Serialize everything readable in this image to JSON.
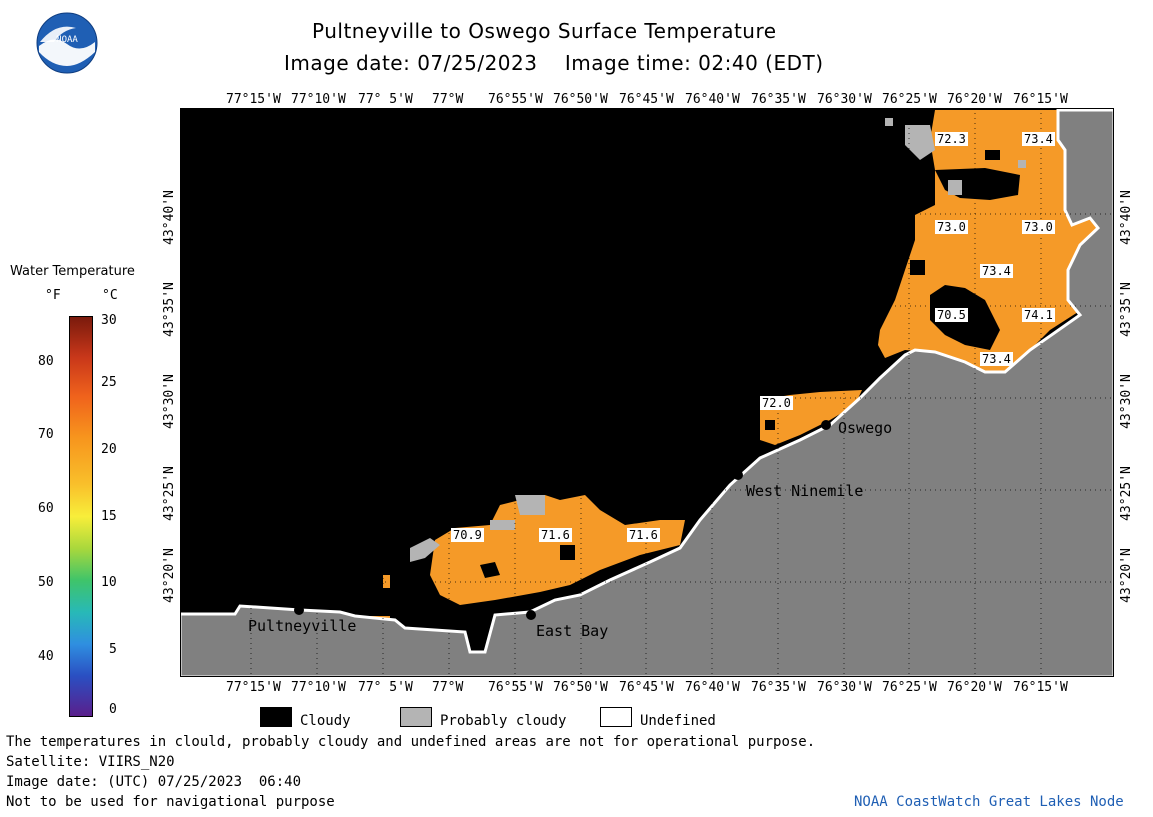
{
  "header": {
    "title": "Pultneyville to Oswego Surface Temperature",
    "subtitle": "Image date: 07/25/2023    Image time: 02:40 (EDT)"
  },
  "logo": {
    "text": "NOAA"
  },
  "legend": {
    "title": "Water Temperature",
    "unit_f": "°F",
    "unit_c": "°C",
    "f_ticks": [
      "80",
      "70",
      "60",
      "50",
      "40"
    ],
    "c_ticks": [
      "30",
      "25",
      "20",
      "15",
      "10",
      "5",
      "0"
    ]
  },
  "map": {
    "lon_labels": [
      "77°15'W",
      "77°10'W",
      "77° 5'W",
      "77°W",
      "76°55'W",
      "76°50'W",
      "76°45'W",
      "76°40'W",
      "76°35'W",
      "76°30'W",
      "76°25'W",
      "76°20'W",
      "76°15'W"
    ],
    "lat_labels": [
      "43°40'N",
      "43°35'N",
      "43°30'N",
      "43°25'N",
      "43°20'N"
    ],
    "places": [
      "Pultneyville",
      "East Bay",
      "West Ninemile",
      "Oswego"
    ],
    "temps": [
      "72.3",
      "73.4",
      "73.0",
      "73.0",
      "73.4",
      "70.5",
      "74.1",
      "73.4",
      "72.0",
      "70.9",
      "71.6",
      "71.6"
    ],
    "colors": {
      "land": "#808080",
      "cloud": "#000000",
      "probably_cloudy": "#b4b4b4",
      "water_warm": "#f59a28"
    }
  },
  "key": {
    "cloudy": "Cloudy",
    "probably_cloudy": "Probably cloudy",
    "undefined": "Undefined"
  },
  "footer": {
    "line1": "The temperatures in clould, probably cloudy and undefined areas are not for operational purpose.",
    "line2": "Satellite: VIIRS_N20",
    "line3": "Image date: (UTC) 07/25/2023  06:40",
    "line4": "Not to be used for navigational purpose",
    "credit": "NOAA CoastWatch Great Lakes Node"
  }
}
